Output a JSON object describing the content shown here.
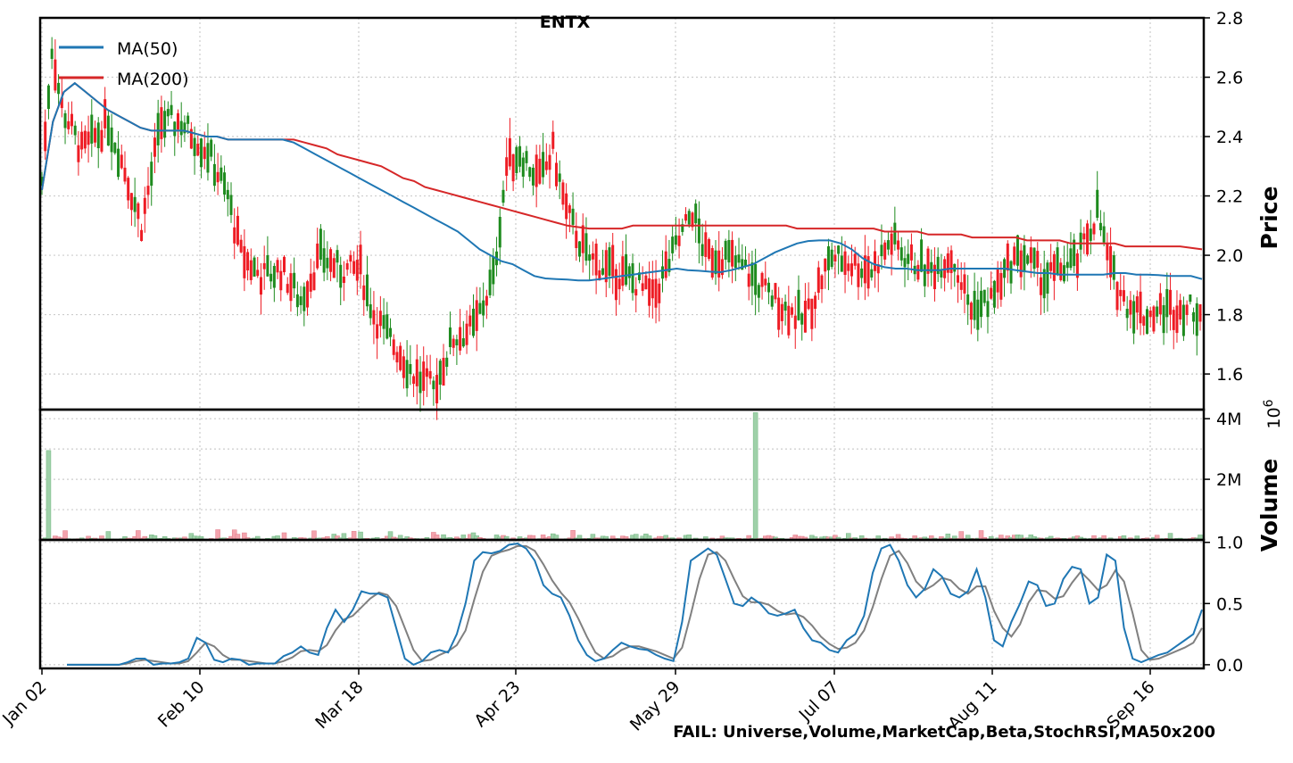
{
  "chart_data": {
    "type": "candlestick",
    "title": "ENTX",
    "x_tick_labels": [
      "Jan 02",
      "Feb 10",
      "Mar 18",
      "Apr 23",
      "May 29",
      "Jul 07",
      "Aug 11",
      "Sep 16"
    ],
    "price_panel": {
      "ylabel": "Price",
      "ylim": [
        1.48,
        2.8
      ],
      "yticks": [
        "1.6",
        "1.8",
        "2.0",
        "2.2",
        "2.4",
        "2.6",
        "2.8"
      ],
      "legend_position": "top-left",
      "legend": [
        "MA(50)",
        "MA(200)"
      ],
      "ma50": [
        2.22,
        2.45,
        2.55,
        2.58,
        2.55,
        2.52,
        2.49,
        2.47,
        2.45,
        2.43,
        2.42,
        2.42,
        2.42,
        2.42,
        2.41,
        2.4,
        2.4,
        2.39,
        2.39,
        2.39,
        2.39,
        2.39,
        2.39,
        2.38,
        2.36,
        2.34,
        2.32,
        2.3,
        2.28,
        2.26,
        2.24,
        2.22,
        2.2,
        2.18,
        2.16,
        2.14,
        2.12,
        2.1,
        2.08,
        2.05,
        2.02,
        2.0,
        1.98,
        1.97,
        1.95,
        1.93,
        1.922,
        1.92,
        1.918,
        1.915,
        1.915,
        1.92,
        1.925,
        1.93,
        1.935,
        1.94,
        1.945,
        1.95,
        1.955,
        1.95,
        1.948,
        1.945,
        1.943,
        1.95,
        1.96,
        1.97,
        1.99,
        2.01,
        2.025,
        2.04,
        2.048,
        2.05,
        2.05,
        2.04,
        2.02,
        1.99,
        1.97,
        1.96,
        1.955,
        1.955,
        1.95,
        1.95,
        1.95,
        1.955,
        1.955,
        1.955,
        1.955,
        1.955,
        1.955,
        1.95,
        1.945,
        1.94,
        1.94,
        1.935,
        1.935,
        1.935,
        1.935,
        1.935,
        1.94,
        1.94,
        1.935,
        1.935,
        1.933,
        1.93,
        1.93,
        1.93,
        1.92
      ],
      "ma200": [
        2.22,
        2.45,
        2.55,
        2.58,
        2.55,
        2.52,
        2.49,
        2.47,
        2.45,
        2.43,
        2.42,
        2.42,
        2.42,
        2.42,
        2.41,
        2.4,
        2.4,
        2.39,
        2.39,
        2.39,
        2.39,
        2.39,
        2.39,
        2.39,
        2.38,
        2.37,
        2.36,
        2.34,
        2.33,
        2.32,
        2.31,
        2.3,
        2.28,
        2.26,
        2.25,
        2.23,
        2.22,
        2.21,
        2.2,
        2.19,
        2.18,
        2.17,
        2.16,
        2.15,
        2.14,
        2.13,
        2.12,
        2.11,
        2.1,
        2.095,
        2.09,
        2.09,
        2.09,
        2.09,
        2.1,
        2.1,
        2.1,
        2.1,
        2.1,
        2.1,
        2.1,
        2.1,
        2.1,
        2.1,
        2.1,
        2.1,
        2.1,
        2.1,
        2.1,
        2.09,
        2.09,
        2.09,
        2.09,
        2.09,
        2.09,
        2.09,
        2.09,
        2.08,
        2.08,
        2.08,
        2.08,
        2.07,
        2.07,
        2.07,
        2.07,
        2.06,
        2.06,
        2.06,
        2.06,
        2.06,
        2.05,
        2.05,
        2.05,
        2.05,
        2.04,
        2.04,
        2.04,
        2.04,
        2.04,
        2.03,
        2.03,
        2.03,
        2.03,
        2.03,
        2.03,
        2.025,
        2.02
      ]
    },
    "volume_panel": {
      "ylabel": "Volume",
      "scale_label": "10^6",
      "ylim": [
        0,
        4.3
      ],
      "yticks": [
        "2M",
        "4M"
      ],
      "spikes": [
        {
          "index": 2,
          "value": 2.95,
          "up": true
        },
        {
          "index": 215,
          "value": 4.2,
          "up": true
        }
      ]
    },
    "stochrsi_panel": {
      "ylim": [
        -0.03,
        1.02
      ],
      "yticks": [
        "0.0",
        "0.5",
        "1.0"
      ],
      "k": [
        0.0,
        0.0,
        0.0,
        0.0,
        0.0,
        0.0,
        0.0,
        0.02,
        0.05,
        0.05,
        0.0,
        0.01,
        0.01,
        0.02,
        0.05,
        0.22,
        0.18,
        0.04,
        0.02,
        0.05,
        0.04,
        0.0,
        0.01,
        0.01,
        0.01,
        0.07,
        0.1,
        0.15,
        0.1,
        0.08,
        0.3,
        0.45,
        0.35,
        0.45,
        0.6,
        0.58,
        0.58,
        0.55,
        0.3,
        0.05,
        0.0,
        0.03,
        0.1,
        0.12,
        0.1,
        0.25,
        0.5,
        0.85,
        0.92,
        0.91,
        0.93,
        0.98,
        0.99,
        0.95,
        0.85,
        0.65,
        0.58,
        0.55,
        0.4,
        0.2,
        0.08,
        0.03,
        0.05,
        0.12,
        0.18,
        0.15,
        0.13,
        0.12,
        0.08,
        0.05,
        0.03,
        0.35,
        0.85,
        0.9,
        0.95,
        0.9,
        0.7,
        0.5,
        0.48,
        0.55,
        0.5,
        0.42,
        0.4,
        0.42,
        0.45,
        0.3,
        0.2,
        0.18,
        0.12,
        0.1,
        0.2,
        0.25,
        0.4,
        0.75,
        0.95,
        0.98,
        0.85,
        0.65,
        0.55,
        0.62,
        0.78,
        0.72,
        0.58,
        0.55,
        0.6,
        0.78,
        0.55,
        0.2,
        0.15,
        0.35,
        0.5,
        0.68,
        0.65,
        0.48,
        0.5,
        0.7,
        0.8,
        0.78,
        0.5,
        0.55,
        0.9,
        0.85,
        0.3,
        0.05,
        0.02,
        0.05,
        0.08,
        0.1,
        0.15,
        0.2,
        0.25,
        0.45
      ],
      "d": [
        0.0,
        0.0,
        0.0,
        0.0,
        0.0,
        0.0,
        0.0,
        0.01,
        0.03,
        0.04,
        0.03,
        0.02,
        0.01,
        0.01,
        0.03,
        0.1,
        0.18,
        0.15,
        0.08,
        0.04,
        0.04,
        0.03,
        0.02,
        0.01,
        0.01,
        0.03,
        0.06,
        0.11,
        0.12,
        0.11,
        0.16,
        0.28,
        0.37,
        0.4,
        0.47,
        0.54,
        0.59,
        0.57,
        0.48,
        0.3,
        0.12,
        0.03,
        0.04,
        0.08,
        0.11,
        0.16,
        0.28,
        0.53,
        0.76,
        0.89,
        0.92,
        0.94,
        0.97,
        0.97,
        0.93,
        0.82,
        0.69,
        0.59,
        0.51,
        0.38,
        0.23,
        0.1,
        0.05,
        0.07,
        0.12,
        0.15,
        0.15,
        0.13,
        0.11,
        0.08,
        0.05,
        0.14,
        0.41,
        0.7,
        0.9,
        0.92,
        0.85,
        0.7,
        0.56,
        0.51,
        0.51,
        0.49,
        0.44,
        0.41,
        0.42,
        0.39,
        0.32,
        0.23,
        0.17,
        0.13,
        0.14,
        0.18,
        0.28,
        0.47,
        0.7,
        0.89,
        0.93,
        0.83,
        0.68,
        0.61,
        0.65,
        0.71,
        0.69,
        0.62,
        0.58,
        0.64,
        0.64,
        0.44,
        0.3,
        0.23,
        0.33,
        0.51,
        0.61,
        0.6,
        0.54,
        0.56,
        0.67,
        0.76,
        0.69,
        0.61,
        0.65,
        0.77,
        0.68,
        0.42,
        0.12,
        0.04,
        0.05,
        0.08,
        0.11,
        0.14,
        0.18,
        0.3
      ]
    }
  },
  "footer": {
    "status_text": "FAIL: Universe,Volume,MarketCap,Beta,StochRSI,MA50x200"
  },
  "colors": {
    "up": "#1e8b1e",
    "down": "#ee1c24",
    "ma50": "#1f77b4",
    "ma200": "#d62728",
    "vol_up": "#9fd1a9",
    "vol_down": "#f4a3ad",
    "k_line": "#1f77b4",
    "d_line": "#808080",
    "fail_text": "#ff1a1a"
  }
}
